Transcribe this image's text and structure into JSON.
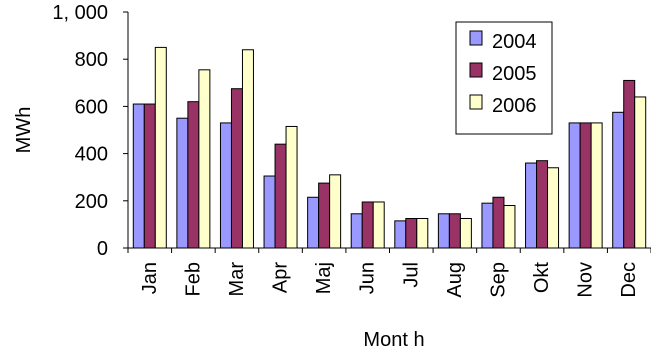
{
  "chart_data": {
    "type": "bar",
    "title": "",
    "xlabel": "Mont h",
    "ylabel": "MWh",
    "ylim": [
      0,
      1000
    ],
    "yticks": [
      0,
      200,
      400,
      600,
      800,
      1000
    ],
    "ytick_labels": [
      "0",
      "200",
      "400",
      "600",
      "800",
      "1, 000"
    ],
    "categories": [
      "Jan",
      "Feb",
      "Mar",
      "Apr",
      "May",
      "Jun",
      "Jul",
      "Aug",
      "Sep",
      "Oct",
      "Nov",
      "Dec"
    ],
    "category_labels": [
      "Jan",
      "Feb",
      "Mar",
      "Apr",
      "Maj",
      "Jun",
      "Jul",
      "Aug",
      "Sep",
      "Okt",
      "Nov",
      "Dec"
    ],
    "series": [
      {
        "name": "2004",
        "color": "#9999ff",
        "values": [
          610,
          550,
          530,
          305,
          215,
          145,
          115,
          145,
          190,
          360,
          530,
          575
        ]
      },
      {
        "name": "2005",
        "color": "#993366",
        "values": [
          610,
          620,
          675,
          440,
          275,
          195,
          125,
          145,
          215,
          370,
          530,
          710
        ]
      },
      {
        "name": "2006",
        "color": "#ffffcc",
        "values": [
          850,
          755,
          840,
          515,
          310,
          195,
          125,
          125,
          180,
          340,
          530,
          640
        ]
      }
    ],
    "grid": false,
    "legend_position": "top-right"
  }
}
